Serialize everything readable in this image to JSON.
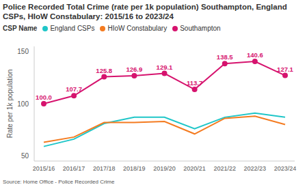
{
  "chart_data": {
    "type": "line",
    "title": "Police Recorded Total Crime (rate per 1k population) Southampton, England CSPs, HIoW Constabulary: 2015/16 to 2023/24",
    "legend_title": "CSP Name",
    "legend": "top-left",
    "y_label": "Rate per 1k population",
    "source": "Source: Home Office - Police Recorded Crime",
    "categories": [
      "2015/16",
      "2016/17",
      "2017/18",
      "2018/19",
      "2019/20",
      "2020/21",
      "2021/22",
      "2022/23",
      "2023/24"
    ],
    "series": [
      {
        "name": "England CSPs",
        "color": "#1fc6c8",
        "marker": "none",
        "values": [
          59,
          66,
          81,
          87,
          87,
          76,
          87,
          91,
          87
        ]
      },
      {
        "name": "HIoW Constabulary",
        "color": "#f47b20",
        "marker": "none",
        "values": [
          63,
          68,
          82,
          82,
          83,
          71,
          86,
          88,
          80
        ]
      },
      {
        "name": "Southampton",
        "color": "#d6136e",
        "marker": "circle",
        "data_labels": true,
        "values": [
          100,
          107.7,
          125.8,
          126.9,
          129.1,
          113.7,
          138.5,
          140.6,
          127.1
        ],
        "value_labels": [
          "100.0",
          "107.7",
          "125.8",
          "126.9",
          "129.1",
          "113.7",
          "138.5",
          "140.6",
          "127.1"
        ]
      }
    ],
    "ylim": [
      45,
      155
    ],
    "yticks": [
      50,
      100,
      150
    ],
    "grid": false
  }
}
